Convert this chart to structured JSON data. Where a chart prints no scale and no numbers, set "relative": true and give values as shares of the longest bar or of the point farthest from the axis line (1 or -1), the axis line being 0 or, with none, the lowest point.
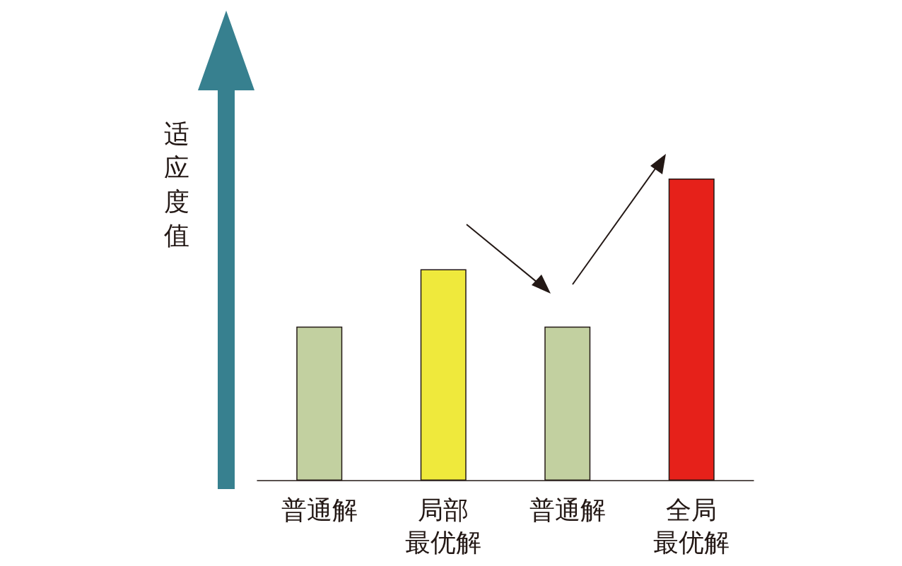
{
  "chart_data": {
    "type": "bar",
    "relative": true,
    "ylabel": "适应度值",
    "categories": [
      "普通解",
      "局部最优解",
      "普通解",
      "全局最优解"
    ],
    "values": [
      0.51,
      0.7,
      0.51,
      1
    ],
    "colors": [
      "#c2d0a0",
      "#efe93c",
      "#c2d0a0",
      "#e6211a"
    ],
    "grid": false
  }
}
